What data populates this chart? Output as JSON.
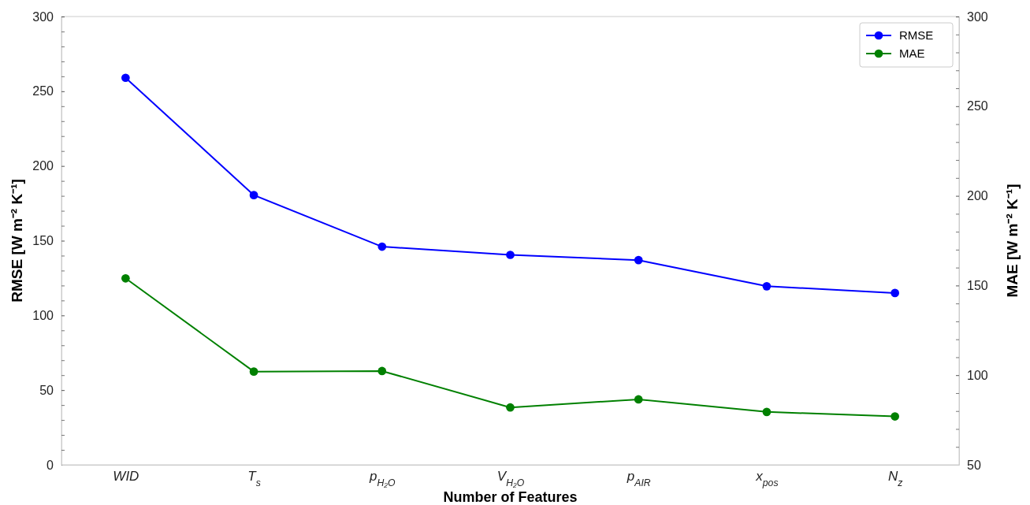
{
  "chart_data": {
    "type": "line",
    "xlabel": "Number of Features",
    "ylabel": "RMSE [W m⁻² K⁻¹]",
    "y2label": "MAE [W m⁻² K⁻¹]",
    "categories": [
      "WID",
      "T$_{s}$",
      "p$_{H₂O}$",
      "V$_{H₂O}$",
      "p$_{AIR}$",
      "x$_{pos}$",
      "N$_{z}$"
    ],
    "series": [
      {
        "name": "RMSE",
        "color": "#0000ff",
        "values": [
          259,
          180.5,
          146,
          140.5,
          137,
          119.5,
          115
        ]
      },
      {
        "name": "MAE",
        "color": "#008000",
        "axis": "y2",
        "values": [
          154,
          102,
          102.3,
          82,
          86.5,
          79.5,
          77
        ]
      }
    ],
    "ylim": [
      0,
      300
    ],
    "yticks": [
      0,
      {
        "value": 10,
        "label": null
      },
      {
        "value": 20,
        "label": null
      },
      {
        "value": 30,
        "label": null
      },
      {
        "value": 40,
        "label": null
      },
      50,
      {
        "value": 60,
        "label": null
      },
      {
        "value": 70,
        "label": null
      },
      {
        "value": 80,
        "label": null
      },
      {
        "value": 90,
        "label": null
      },
      100,
      {
        "value": 110,
        "label": null
      },
      {
        "value": 120,
        "label": null
      },
      {
        "value": 130,
        "label": null
      },
      {
        "value": 140,
        "label": null
      },
      150,
      {
        "value": 160,
        "label": null
      },
      {
        "value": 170,
        "label": null
      },
      {
        "value": 180,
        "label": null
      },
      {
        "value": 190,
        "label": null
      },
      200,
      {
        "value": 210,
        "label": null
      },
      {
        "value": 220,
        "label": null
      },
      {
        "value": 230,
        "label": null
      },
      {
        "value": 240,
        "label": null
      },
      250,
      {
        "value": 260,
        "label": null
      },
      {
        "value": 270,
        "label": null
      },
      {
        "value": 280,
        "label": null
      },
      {
        "value": 290,
        "label": null
      },
      300
    ],
    "y2lim": [
      50,
      300
    ],
    "y2ticks": [
      50,
      {
        "value": 60,
        "label": null
      },
      {
        "value": 70,
        "label": null
      },
      {
        "value": 80,
        "label": null
      },
      {
        "value": 90,
        "label": null
      },
      100,
      {
        "value": 110,
        "label": null
      },
      {
        "value": 120,
        "label": null
      },
      {
        "value": 130,
        "label": null
      },
      {
        "value": 140,
        "label": null
      },
      150,
      {
        "value": 160,
        "label": null
      },
      {
        "value": 170,
        "label": null
      },
      {
        "value": 180,
        "label": null
      },
      {
        "value": 190,
        "label": null
      },
      200,
      {
        "value": 210,
        "label": null
      },
      {
        "value": 220,
        "label": null
      },
      {
        "value": 230,
        "label": null
      },
      {
        "value": 240,
        "label": null
      },
      250,
      {
        "value": 260,
        "label": null
      },
      {
        "value": 270,
        "label": null
      },
      {
        "value": 280,
        "label": null
      },
      {
        "value": 290,
        "label": null
      },
      300
    ],
    "grid": false,
    "legend": "top right",
    "marker": "circle",
    "line_style": "solid"
  }
}
